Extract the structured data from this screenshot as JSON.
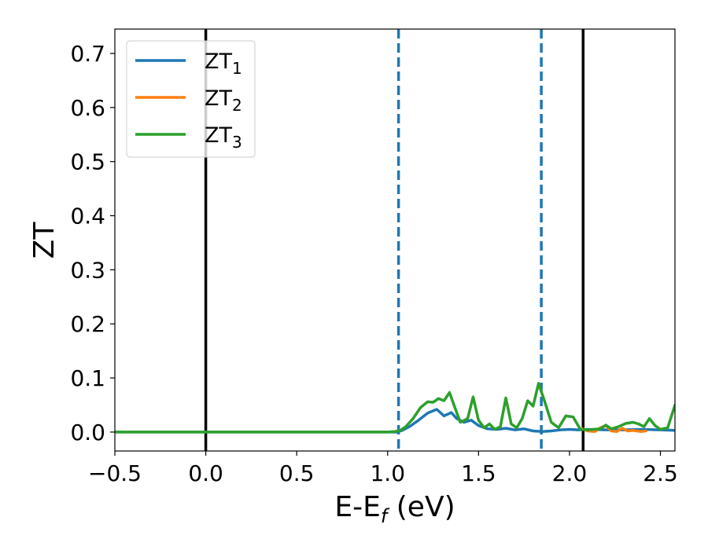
{
  "chart_data": {
    "type": "line",
    "xlabel_main": "E-E",
    "xlabel_sub": "f",
    "xlabel_unit": " (eV)",
    "ylabel": "ZT",
    "xlim": [
      -0.5,
      2.58
    ],
    "ylim": [
      -0.035,
      0.745
    ],
    "xticks": [
      -0.5,
      0.0,
      0.5,
      1.0,
      1.5,
      2.0,
      2.5
    ],
    "xtick_labels": [
      "−0.5",
      "0.0",
      "0.5",
      "1.0",
      "1.5",
      "2.0",
      "2.5"
    ],
    "yticks": [
      0.0,
      0.1,
      0.2,
      0.3,
      0.4,
      0.5,
      0.6,
      0.7
    ],
    "ytick_labels": [
      "0.0",
      "0.1",
      "0.2",
      "0.3",
      "0.4",
      "0.5",
      "0.6",
      "0.7"
    ],
    "grid": false,
    "legend_position": "upper-left",
    "vlines": [
      {
        "x": 0.0,
        "style": "solid",
        "color": "#000000"
      },
      {
        "x": 2.075,
        "style": "solid",
        "color": "#000000"
      },
      {
        "x": 1.06,
        "style": "dashed",
        "color": "#1f77b4"
      },
      {
        "x": 1.845,
        "style": "dashed",
        "color": "#1f77b4"
      }
    ],
    "series": [
      {
        "name": "ZT",
        "subscript": "1",
        "color": "#1f77b4",
        "x": [
          -0.5,
          0.5,
          1.0,
          1.05,
          1.08,
          1.12,
          1.17,
          1.22,
          1.27,
          1.31,
          1.35,
          1.38,
          1.42,
          1.46,
          1.5,
          1.55,
          1.6,
          1.65,
          1.7,
          1.75,
          1.8,
          1.85,
          1.9,
          1.95,
          2.0,
          2.05,
          2.1,
          2.2,
          2.3,
          2.4,
          2.5,
          2.58
        ],
        "y": [
          0.0,
          0.0,
          0.0,
          0.0,
          0.003,
          0.01,
          0.022,
          0.035,
          0.042,
          0.03,
          0.036,
          0.025,
          0.018,
          0.022,
          0.012,
          0.006,
          0.005,
          0.007,
          0.004,
          0.006,
          0.002,
          0.001,
          0.002,
          0.004,
          0.005,
          0.004,
          0.005,
          0.004,
          0.004,
          0.005,
          0.004,
          0.003
        ]
      },
      {
        "name": "ZT",
        "subscript": "2",
        "color": "#ff7f0e",
        "x": [
          2.07,
          2.1,
          2.14,
          2.17,
          2.2,
          2.23,
          2.26,
          2.29,
          2.32,
          2.35,
          2.39,
          2.42
        ],
        "y": [
          0.006,
          0.002,
          0.001,
          0.008,
          0.012,
          0.002,
          0.001,
          0.007,
          0.002,
          0.003,
          0.001,
          0.002
        ]
      },
      {
        "name": "ZT",
        "subscript": "3",
        "color": "#2ca02c",
        "x": [
          -0.5,
          0.5,
          1.0,
          1.04,
          1.07,
          1.1,
          1.14,
          1.18,
          1.22,
          1.25,
          1.28,
          1.31,
          1.34,
          1.37,
          1.4,
          1.44,
          1.47,
          1.5,
          1.53,
          1.56,
          1.59,
          1.62,
          1.65,
          1.68,
          1.71,
          1.74,
          1.77,
          1.8,
          1.83,
          1.86,
          1.9,
          1.94,
          1.98,
          2.02,
          2.06,
          2.1,
          2.13,
          2.17,
          2.2,
          2.23,
          2.27,
          2.31,
          2.35,
          2.38,
          2.41,
          2.44,
          2.47,
          2.5,
          2.54,
          2.58
        ],
        "y": [
          0.0,
          0.0,
          0.0,
          0.001,
          0.003,
          0.01,
          0.025,
          0.045,
          0.056,
          0.055,
          0.062,
          0.058,
          0.073,
          0.045,
          0.018,
          0.025,
          0.065,
          0.022,
          0.008,
          0.015,
          0.005,
          0.01,
          0.063,
          0.015,
          0.008,
          0.025,
          0.058,
          0.048,
          0.09,
          0.06,
          0.018,
          0.008,
          0.03,
          0.028,
          0.005,
          0.004,
          0.005,
          0.006,
          0.013,
          0.006,
          0.01,
          0.016,
          0.018,
          0.015,
          0.01,
          0.025,
          0.012,
          0.005,
          0.008,
          0.05
        ]
      }
    ]
  }
}
